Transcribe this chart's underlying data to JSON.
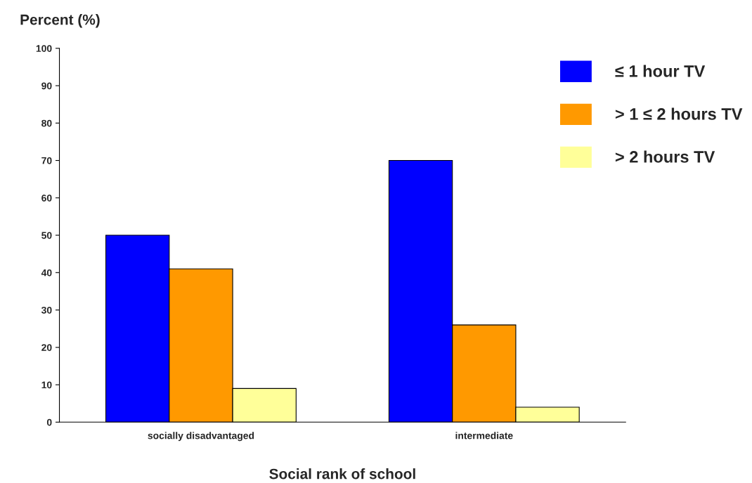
{
  "chart_data": {
    "type": "bar",
    "xlabel": "Social rank of school",
    "ylabel": "Percent (%)",
    "categories": [
      "socially disadvantaged",
      "intermediate"
    ],
    "series": [
      {
        "name": "≤ 1 hour TV",
        "color": "#0000ff",
        "values": [
          50,
          70
        ]
      },
      {
        "name": "> 1 ≤ 2 hours TV",
        "color": "#ff9900",
        "values": [
          41,
          26
        ]
      },
      {
        "name": "> 2 hours TV",
        "color": "#ffff99",
        "values": [
          9,
          4
        ]
      }
    ],
    "ylim": [
      0,
      100
    ],
    "yticks": [
      0,
      10,
      20,
      30,
      40,
      50,
      60,
      70,
      80,
      90,
      100
    ],
    "grid": false,
    "legend": "top right"
  }
}
